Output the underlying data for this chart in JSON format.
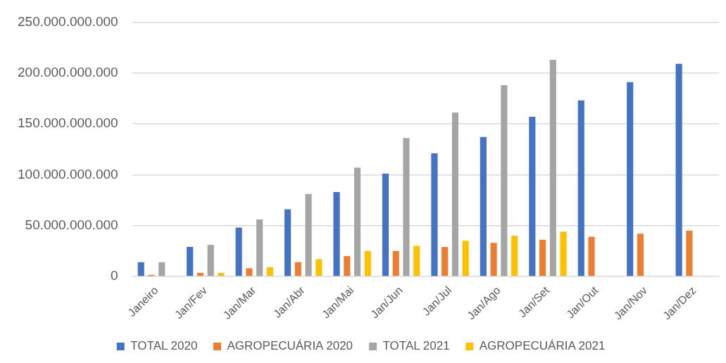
{
  "chart_data": {
    "type": "bar",
    "categories": [
      "Janeiro",
      "Jan/Fev",
      "Jan/Mar",
      "Jan/Abr",
      "Jan/Mai",
      "Jan/Jun",
      "Jan/Jul",
      "Jan/Ago",
      "Jan/Set",
      "Jan/Out",
      "Jan/Nov",
      "Jan/Dez"
    ],
    "series": [
      {
        "name": "TOTAL 2020",
        "color": "#4472c4",
        "values": [
          14000000000,
          29000000000,
          48000000000,
          66000000000,
          83000000000,
          101000000000,
          121000000000,
          137000000000,
          157000000000,
          173000000000,
          191000000000,
          209000000000
        ]
      },
      {
        "name": "AGROPECUÁRIA 2020",
        "color": "#ed7d31",
        "values": [
          1500000000,
          3500000000,
          8000000000,
          14000000000,
          20000000000,
          25000000000,
          29000000000,
          33000000000,
          36000000000,
          39000000000,
          42000000000,
          45000000000
        ]
      },
      {
        "name": "TOTAL 2021",
        "color": "#a5a5a5",
        "values": [
          14000000000,
          31000000000,
          56000000000,
          81000000000,
          107000000000,
          136000000000,
          161000000000,
          188000000000,
          213000000000,
          null,
          null,
          null
        ]
      },
      {
        "name": "AGROPECUÁRIA 2021",
        "color": "#ffc000",
        "values": [
          null,
          3500000000,
          9000000000,
          17000000000,
          25000000000,
          30000000000,
          35000000000,
          40000000000,
          44000000000,
          null,
          null,
          null
        ]
      }
    ],
    "ylim": [
      0,
      250000000000
    ],
    "yticks": [
      {
        "value": 0,
        "label": "0"
      },
      {
        "value": 50000000000,
        "label": "50.000.000.000"
      },
      {
        "value": 100000000000,
        "label": "100.000.000.000"
      },
      {
        "value": 150000000000,
        "label": "150.000.000.000"
      },
      {
        "value": 200000000000,
        "label": "200.000.000.000"
      },
      {
        "value": 250000000000,
        "label": "250.000.000.000"
      }
    ],
    "grid": "y",
    "legend": "bottom"
  }
}
